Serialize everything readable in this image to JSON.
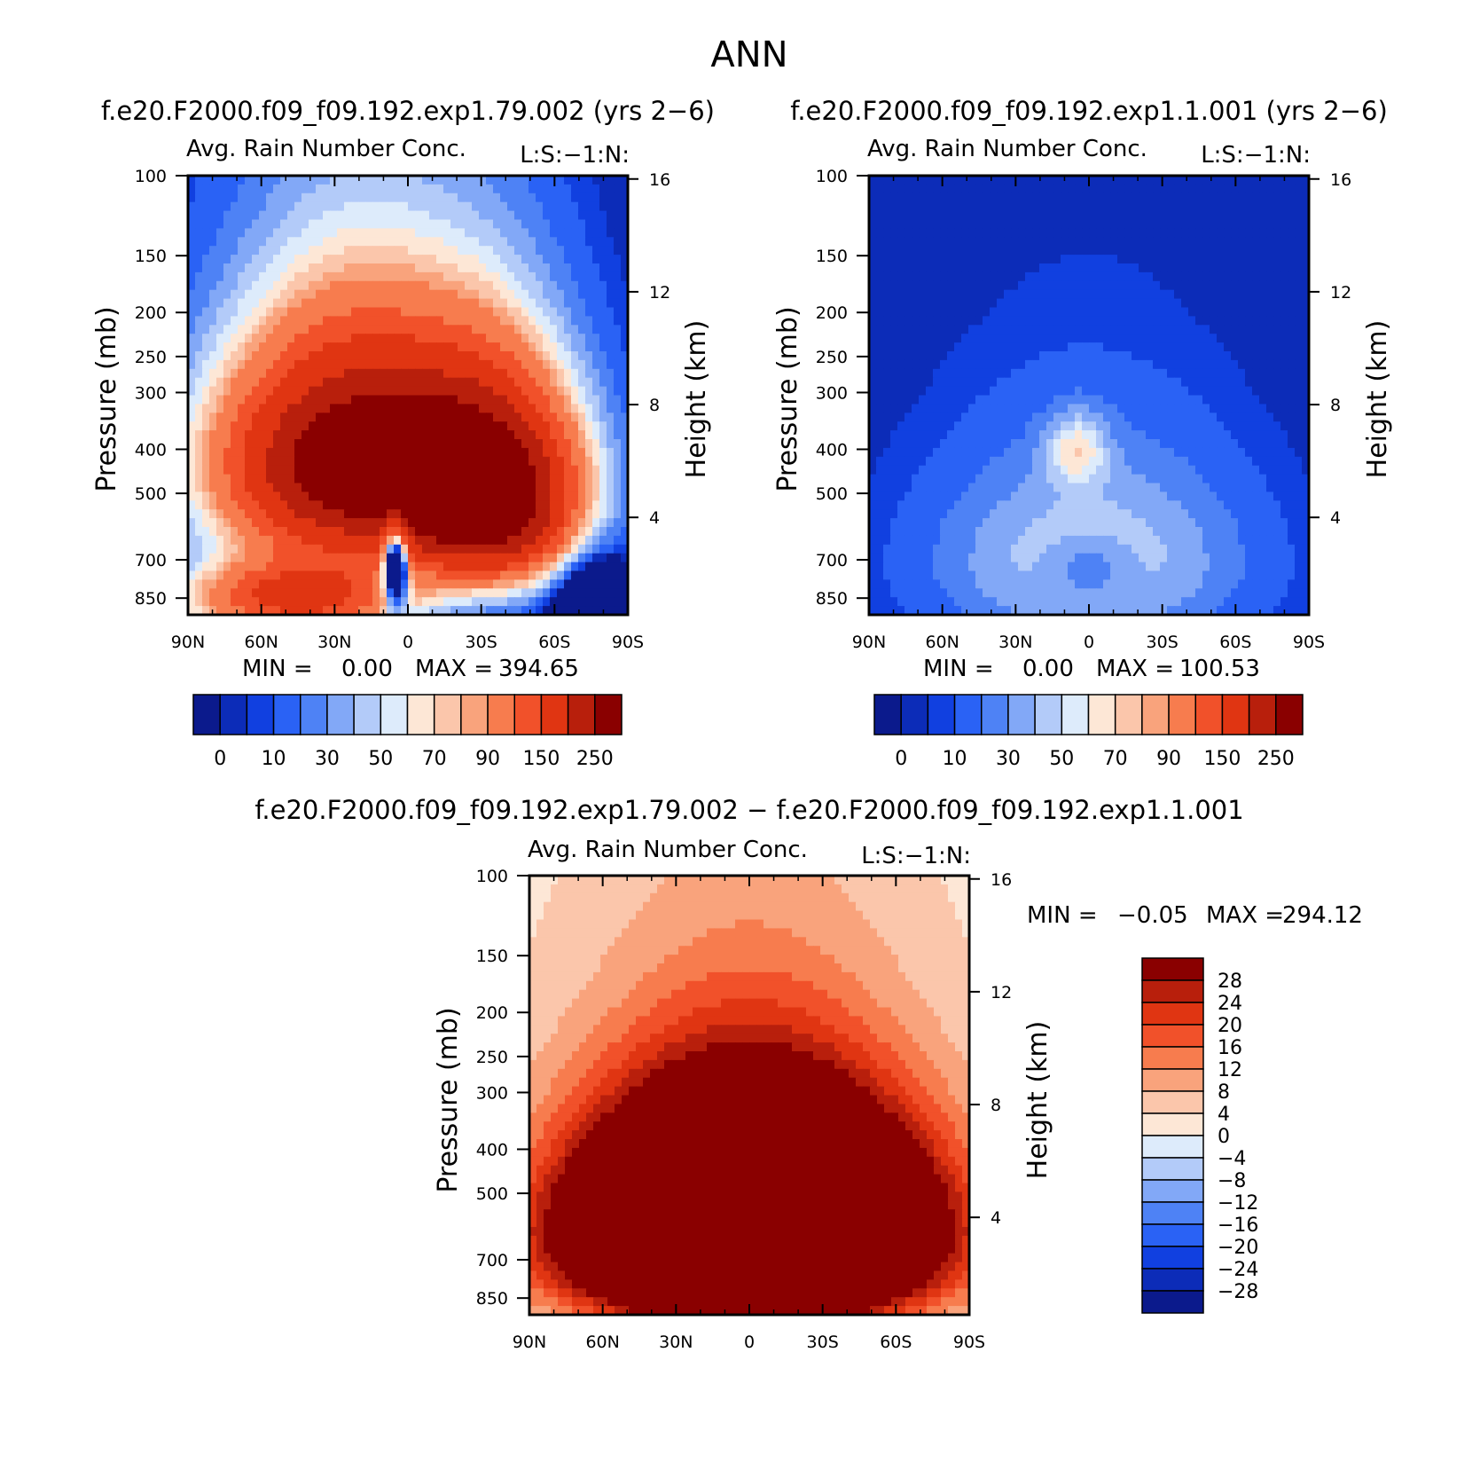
{
  "figure": {
    "title": "ANN",
    "diff_header": "f.e20.F2000.f09_f09.192.exp1.79.002 − f.e20.F2000.f09_f09.192.exp1.1.001"
  },
  "chart_data": [
    {
      "type": "heatmap",
      "id": "panel-exp79",
      "case_title": "f.e20.F2000.f09_f09.192.exp1.79.002 (yrs 2−6)",
      "title": "Avg. Rain Number Conc.",
      "subtitle": "L:S:−1:N:",
      "ylabel": "Pressure (mb)",
      "y2label": "Height (km)",
      "x_ticks": [
        "90N",
        "60N",
        "30N",
        "0",
        "30S",
        "60S",
        "90S"
      ],
      "y_ticks": [
        100,
        150,
        200,
        250,
        300,
        400,
        500,
        700,
        850
      ],
      "y2_ticks": [
        16,
        12,
        8,
        4
      ],
      "min_label": "MIN =",
      "min_value": "0.00",
      "max_label": "MAX =",
      "max_value": "394.65",
      "colorbar_labels": [
        "0",
        "10",
        "30",
        "50",
        "70",
        "90",
        "150",
        "250"
      ],
      "colorbar_colors": [
        "#0b1a8c",
        "#0c2cb8",
        "#1140e0",
        "#2a62f5",
        "#4e82f5",
        "#82a8f7",
        "#b3cbf9",
        "#ddebfb",
        "#fde7d6",
        "#fbc6ab",
        "#f9a37c",
        "#f77c4e",
        "#f1512a",
        "#e03512",
        "#b81f0c",
        "#8a0000"
      ],
      "field": {
        "background": 0,
        "blobs": [
          {
            "cx": -20,
            "cy": 430,
            "sx": 55,
            "sy": 230,
            "a": 320
          },
          {
            "cx": 35,
            "cy": 520,
            "sx": 35,
            "sy": 240,
            "a": 270
          },
          {
            "cx": -45,
            "cy": 850,
            "sx": 45,
            "sy": 160,
            "a": 170
          },
          {
            "cx": -5,
            "cy": 720,
            "sx": 5,
            "sy": 150,
            "a": -200
          },
          {
            "cx": 75,
            "cy": 900,
            "sx": 15,
            "sy": 240,
            "a": -80
          }
        ]
      }
    },
    {
      "type": "heatmap",
      "id": "panel-exp1",
      "case_title": "f.e20.F2000.f09_f09.192.exp1.1.001 (yrs 2−6)",
      "title": "Avg. Rain Number Conc.",
      "subtitle": "L:S:−1:N:",
      "ylabel": "Pressure (mb)",
      "y2label": "Height (km)",
      "x_ticks": [
        "90N",
        "60N",
        "30N",
        "0",
        "30S",
        "60S",
        "90S"
      ],
      "y_ticks": [
        100,
        150,
        200,
        250,
        300,
        400,
        500,
        700,
        850
      ],
      "y2_ticks": [
        16,
        12,
        8,
        4
      ],
      "min_label": "MIN =",
      "min_value": "0.00",
      "max_label": "MAX =",
      "max_value": "100.53",
      "colorbar_labels": [
        "0",
        "10",
        "30",
        "50",
        "70",
        "90",
        "150",
        "250"
      ],
      "colorbar_colors": [
        "#0b1a8c",
        "#0c2cb8",
        "#1140e0",
        "#2a62f5",
        "#4e82f5",
        "#82a8f7",
        "#b3cbf9",
        "#ddebfb",
        "#fde7d6",
        "#fbc6ab",
        "#f9a37c",
        "#f77c4e",
        "#f1512a",
        "#e03512",
        "#b81f0c",
        "#8a0000"
      ],
      "field": {
        "background": 0,
        "blobs": [
          {
            "cx": 0,
            "cy": 700,
            "sx": 65,
            "sy": 360,
            "a": 52
          },
          {
            "cx": -5,
            "cy": 400,
            "sx": 12,
            "sy": 70,
            "a": 45
          },
          {
            "cx": 0,
            "cy": 730,
            "sx": 18,
            "sy": 110,
            "a": -28
          }
        ]
      }
    },
    {
      "type": "heatmap",
      "id": "panel-diff",
      "title": "Avg. Rain Number Conc.",
      "subtitle": "L:S:−1:N:",
      "ylabel": "Pressure (mb)",
      "y2label": "Height (km)",
      "x_ticks": [
        "90N",
        "60N",
        "30N",
        "0",
        "30S",
        "60S",
        "90S"
      ],
      "y_ticks": [
        100,
        150,
        200,
        250,
        300,
        400,
        500,
        700,
        850
      ],
      "y2_ticks": [
        16,
        12,
        8,
        4
      ],
      "min_label": "MIN =",
      "min_value": "−0.05",
      "max_label": "MAX =",
      "max_value": "294.12",
      "colorbar_labels": [
        "28",
        "24",
        "20",
        "16",
        "12",
        "8",
        "4",
        "0",
        "−4",
        "−8",
        "−12",
        "−16",
        "−20",
        "−24",
        "−28"
      ],
      "colorbar_colors": [
        "#8a0000",
        "#b81f0c",
        "#e03512",
        "#f1512a",
        "#f77c4e",
        "#f9a37c",
        "#fbc6ab",
        "#fde7d6",
        "#ddebfb",
        "#b3cbf9",
        "#82a8f7",
        "#4e82f5",
        "#2a62f5",
        "#1140e0",
        "#0c2cb8",
        "#0b1a8c"
      ],
      "field": {
        "background": 2,
        "blobs": [
          {
            "cx": 0,
            "cy": 600,
            "sx": 68,
            "sy": 300,
            "a": 120
          }
        ]
      }
    }
  ]
}
